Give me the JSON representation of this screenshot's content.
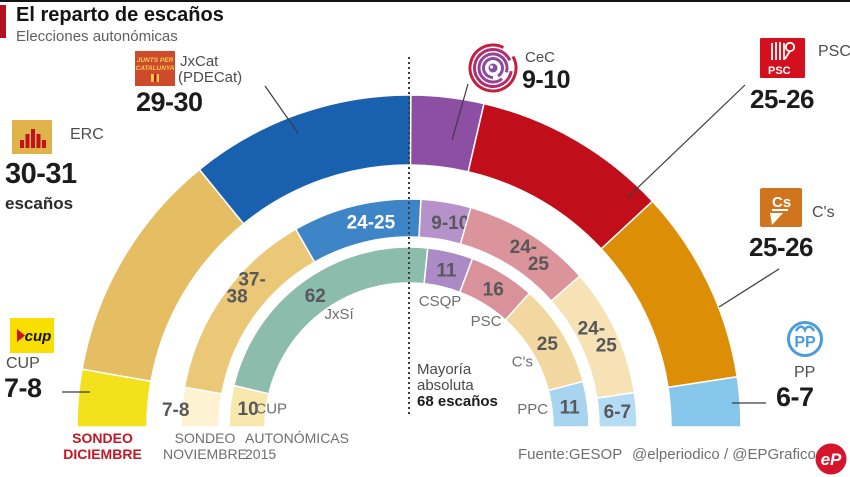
{
  "header": {
    "title": "El reparto de escaños",
    "subtitle": "Elecciones autonómicas"
  },
  "chart_data": {
    "type": "hemicycle",
    "total_seats": 135,
    "legend_position": "bottom-left",
    "majority": {
      "lines": [
        "Mayoría",
        "absoluta"
      ],
      "bold_line": "68 escaños",
      "seats": 68
    },
    "rings": [
      {
        "id": "december",
        "caption": [
          "SONDEO",
          "DICIEMBRE"
        ],
        "segments": [
          {
            "party": "CUP",
            "label": "7-8",
            "value": 7.5,
            "color": "#f3e11c"
          },
          {
            "party": "ERC",
            "label": "30-31",
            "value": 30.5,
            "color": "#e5bd62",
            "unit": "escaños"
          },
          {
            "party": "JxCat",
            "party_sub": "(PDECat)",
            "label": "29-30",
            "value": 29.5,
            "color": "#1961ae"
          },
          {
            "party": "CeC",
            "label": "9-10",
            "value": 9.5,
            "color": "#8c4fa4"
          },
          {
            "party": "PSC",
            "label": "25-26",
            "value": 25.5,
            "color": "#c00f1a"
          },
          {
            "party": "C's",
            "label": "25-26",
            "value": 25.5,
            "color": "#dd8e07"
          },
          {
            "party": "PP",
            "label": "6-7",
            "value": 6.5,
            "color": "#85c6ea"
          }
        ]
      },
      {
        "id": "november",
        "caption": [
          "SONDEO",
          "NOVIEMBRE"
        ],
        "segments": [
          {
            "party": "CUP",
            "label": "7-8",
            "value": 7.5,
            "color": "#fdf3d2",
            "label_pos": {
              "angle": 175.6,
              "r": 234
            }
          },
          {
            "party": "ERC",
            "label": "37-38",
            "label_lines": [
              "37-",
              "38"
            ],
            "value": 37.5,
            "color": "#eac878",
            "label_pos": {
              "angle": 140,
              "r": 214
            }
          },
          {
            "party": "JxCat",
            "label": "24-25",
            "value": 24.5,
            "color": "#3d85c6",
            "text_color": "#ffffff",
            "label_pos": {
              "angle": 100.5
            }
          },
          {
            "party": "CeC",
            "label": "9-10",
            "value": 9.5,
            "color": "#b791ca",
            "label_pos": {
              "angle": 78.6
            }
          },
          {
            "party": "PSC",
            "label": "24-25",
            "label_lines": [
              "24-",
              "25"
            ],
            "value": 24.5,
            "color": "#dc949b",
            "label_pos": {
              "angle": 54.5
            }
          },
          {
            "party": "C's",
            "label": "24-25",
            "label_lines": [
              "24-",
              "25"
            ],
            "value": 24.5,
            "color": "#f6e2b4"
          },
          {
            "party": "PP",
            "label": "6-7",
            "value": 6.5,
            "color": "#b5dcf5"
          }
        ]
      },
      {
        "id": "autonomicas-2015",
        "caption": [
          "AUTONÓMICAS",
          "2015"
        ],
        "segments": [
          {
            "party": "CUP",
            "label": "10",
            "value": 10,
            "color": "#f8e8ae",
            "name_label": {
              "text": "CUP",
              "angle": 172.4,
              "r": 139
            }
          },
          {
            "party": "JxSí",
            "label": "62",
            "value": 62,
            "color": "#8cbcab",
            "name_label": {
              "text": "JxSí",
              "angle": 121.7,
              "r": 133
            }
          },
          {
            "party": "CSQP",
            "label": "11",
            "value": 11,
            "color": "#ab8ac6",
            "name_label": {
              "text": "CSQP",
              "angle": 76.2,
              "r": 130
            }
          },
          {
            "party": "PSC",
            "label": "16",
            "value": 16,
            "color": "#d9929a",
            "name_label": {
              "text": "PSC",
              "angle": 54,
              "r": 131
            }
          },
          {
            "party": "C's",
            "label": "25",
            "value": 25,
            "color": "#f2d8a0",
            "name_label": {
              "text": "C's",
              "angle": 30,
              "r": 131
            }
          },
          {
            "party": "PPC",
            "label": "11",
            "value": 11,
            "color": "#a9d4ef",
            "name_label": {
              "text": "PPC",
              "angle": 8.3,
              "r": 125
            }
          }
        ]
      }
    ]
  },
  "logos": {
    "jxcat_lines": [
      "JUNTS PER",
      "CATALUNYA"
    ],
    "psc_text": "PSC",
    "cs_text": "Cs",
    "pp_text": "PP",
    "cup_text": "cup",
    "ep_text": "eP"
  },
  "footer": {
    "source": "Fuente:GESOP",
    "credits": "@elperiodico / @EPGraficos"
  }
}
